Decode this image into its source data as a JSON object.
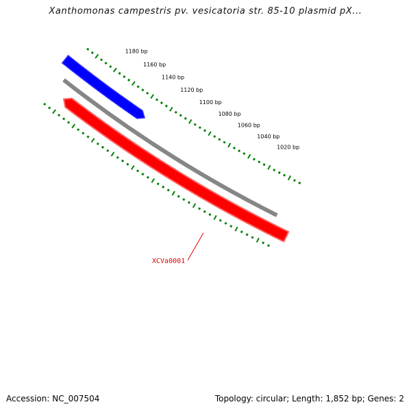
{
  "title": "Xanthomonas campestris pv. vesicatoria str. 85-10 plasmid pX...",
  "footer": {
    "accession": "Accession: NC_007504",
    "summary": "Topology: circular; Length: 1,852 bp; Genes: 2"
  },
  "map": {
    "genome_length": 1852,
    "bp_unit": "bp",
    "visible_range": [
      1000,
      1190
    ],
    "label_interval": 20,
    "tick_interval": 5,
    "tick_labels": [
      "1180 bp",
      "1160 bp",
      "1140 bp",
      "1120 bp",
      "1100 bp",
      "1080 bp",
      "1060 bp",
      "1040 bp",
      "1020 bp"
    ],
    "backbone_color": "#808080",
    "tick_color": "#008000",
    "genes": [
      {
        "label": "",
        "strand": "forward",
        "color": "#0000ff",
        "start": 1140,
        "end": 1190
      },
      {
        "label": "XCVa0001",
        "strand": "reverse",
        "color": "#ff0000",
        "start": 1000,
        "end": 1190
      }
    ]
  }
}
